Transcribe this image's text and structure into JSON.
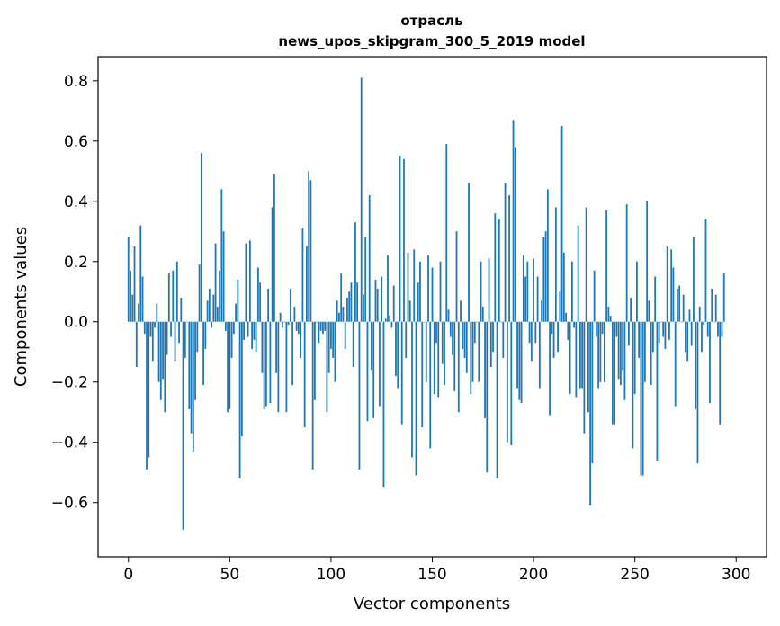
{
  "chart_data": {
    "type": "bar",
    "title_line1": "отрасль",
    "title_line2": "news_upos_skipgram_300_5_2019 model",
    "xlabel": "Vector components",
    "ylabel": "Components values",
    "xlim": [
      -15,
      315
    ],
    "ylim": [
      -0.78,
      0.88
    ],
    "xticks": [
      0,
      50,
      100,
      150,
      200,
      250,
      300
    ],
    "xtick_labels": [
      "0",
      "50",
      "100",
      "150",
      "200",
      "250",
      "300"
    ],
    "yticks": [
      -0.6,
      -0.4,
      -0.2,
      0.0,
      0.2,
      0.4,
      0.6,
      0.8
    ],
    "ytick_labels": [
      "−0.6",
      "−0.4",
      "−0.2",
      "0.0",
      "0.2",
      "0.4",
      "0.6",
      "0.8"
    ],
    "bar_color": "#1f77b4",
    "grid": false,
    "values": [
      0.28,
      0.17,
      0.09,
      0.25,
      -0.15,
      0.06,
      0.32,
      0.15,
      -0.04,
      -0.49,
      -0.45,
      -0.05,
      -0.13,
      -0.02,
      0.06,
      -0.2,
      -0.26,
      -0.19,
      -0.3,
      -0.11,
      0.16,
      -0.05,
      0.17,
      -0.13,
      0.2,
      -0.07,
      0.08,
      -0.69,
      -0.12,
      0.0,
      -0.29,
      -0.37,
      -0.43,
      -0.26,
      -0.1,
      0.19,
      0.56,
      -0.21,
      -0.09,
      0.07,
      0.11,
      -0.02,
      0.09,
      0.26,
      0.05,
      0.17,
      0.44,
      0.3,
      -0.03,
      -0.3,
      -0.29,
      -0.12,
      -0.04,
      0.06,
      0.14,
      -0.52,
      -0.38,
      -0.06,
      0.26,
      -0.05,
      0.27,
      -0.09,
      -0.06,
      -0.1,
      0.18,
      0.13,
      -0.17,
      -0.29,
      -0.28,
      0.11,
      -0.27,
      0.38,
      0.49,
      -0.17,
      -0.3,
      0.03,
      -0.02,
      0.0,
      -0.3,
      -0.01,
      0.11,
      -0.21,
      0.05,
      -0.03,
      -0.04,
      -0.12,
      0.31,
      -0.35,
      0.25,
      0.5,
      0.47,
      -0.49,
      -0.26,
      0.0,
      -0.07,
      -0.03,
      -0.04,
      -0.03,
      -0.3,
      -0.17,
      -0.09,
      -0.12,
      -0.2,
      0.07,
      0.03,
      0.16,
      0.05,
      -0.09,
      0.08,
      0.1,
      0.13,
      -0.15,
      0.33,
      0.13,
      -0.49,
      0.81,
      0.09,
      0.28,
      -0.33,
      0.42,
      -0.16,
      -0.32,
      0.14,
      0.11,
      -0.28,
      0.15,
      -0.55,
      0.01,
      0.22,
      0.02,
      -0.02,
      0.12,
      -0.18,
      -0.22,
      0.55,
      -0.34,
      0.54,
      -0.12,
      0.23,
      0.07,
      -0.45,
      0.24,
      -0.51,
      0.13,
      0.2,
      -0.35,
      0.0,
      -0.2,
      0.22,
      -0.42,
      0.18,
      -0.24,
      -0.07,
      -0.25,
      0.2,
      -0.14,
      -0.21,
      0.59,
      0.04,
      -0.05,
      -0.11,
      -0.23,
      0.3,
      -0.3,
      0.07,
      -0.09,
      -0.12,
      -0.17,
      0.46,
      -0.24,
      -0.2,
      -0.07,
      0.0,
      -0.2,
      0.2,
      0.05,
      -0.32,
      -0.5,
      0.21,
      -0.15,
      -0.1,
      0.36,
      -0.52,
      0.34,
      0.0,
      -0.12,
      0.46,
      -0.4,
      0.42,
      -0.41,
      0.67,
      0.58,
      -0.22,
      -0.26,
      -0.27,
      0.22,
      0.15,
      0.2,
      -0.07,
      -0.13,
      0.21,
      -0.07,
      0.15,
      -0.22,
      0.07,
      0.28,
      0.3,
      0.44,
      -0.31,
      -0.04,
      -0.12,
      0.38,
      -0.1,
      0.1,
      0.65,
      0.23,
      0.03,
      -0.06,
      -0.24,
      0.2,
      -0.02,
      -0.25,
      0.32,
      -0.22,
      -0.22,
      -0.37,
      0.38,
      -0.3,
      -0.61,
      -0.47,
      0.17,
      -0.05,
      -0.22,
      -0.2,
      -0.04,
      -0.2,
      0.37,
      0.05,
      0.02,
      -0.34,
      -0.34,
      -0.05,
      -0.19,
      -0.21,
      -0.16,
      -0.26,
      0.39,
      -0.08,
      0.08,
      -0.42,
      -0.24,
      0.2,
      -0.12,
      -0.51,
      -0.51,
      -0.2,
      0.4,
      0.07,
      -0.21,
      -0.1,
      0.15,
      -0.46,
      -0.07,
      0.0,
      -0.05,
      -0.09,
      0.25,
      -0.06,
      0.24,
      0.18,
      -0.28,
      0.11,
      0.12,
      0.0,
      0.09,
      -0.1,
      -0.13,
      0.04,
      -0.08,
      0.28,
      -0.29,
      -0.47,
      0.05,
      -0.1,
      -0.01,
      0.34,
      -0.05,
      -0.27,
      0.11,
      0.0,
      0.09,
      -0.05,
      -0.34,
      -0.05,
      0.16
    ]
  }
}
